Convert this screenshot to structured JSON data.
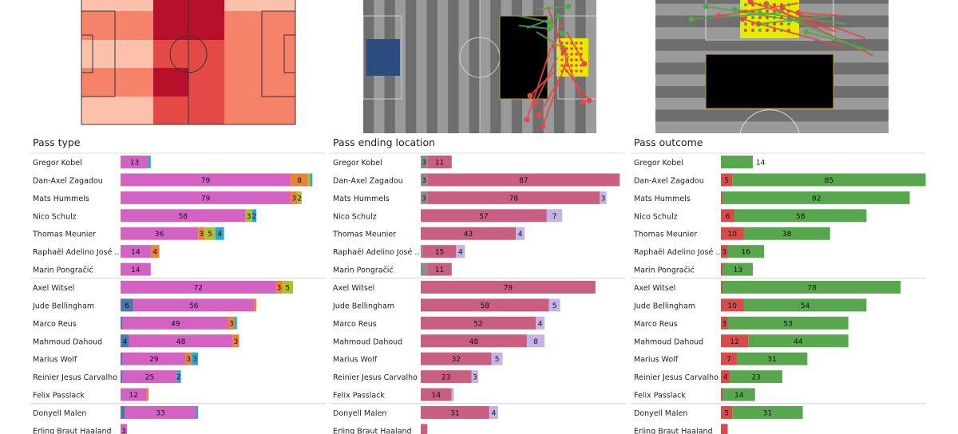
{
  "panels": [
    {
      "title": "Pass type"
    },
    {
      "title": "Pass ending location"
    },
    {
      "title": "Pass outcome"
    }
  ],
  "colors": {
    "type_seg": [
      "#4c78b0",
      "#d462c2",
      "#e8833a",
      "#b5bd35",
      "#2ea6c9"
    ],
    "location_seg": [
      "#8c8c8c",
      "#c85e80",
      "#c5b3e6"
    ],
    "outcome_seg": [
      "#d84b4b",
      "#58a64e"
    ],
    "heat": [
      "#fcc1aa",
      "#f6826a",
      "#e44a45",
      "#b7102a"
    ],
    "pitch_grey": [
      "#6e6e6e",
      "#9a9a9a"
    ],
    "pass_green": "#4ea84a",
    "pass_red": "#e2494b",
    "zone_yellow": "#e5ea00",
    "zone_blue": "#2b4c7e"
  },
  "chart_data": [
    {
      "type": "bar",
      "title": "Pass type",
      "stacked": true,
      "categories": [
        "Gregor Kobel",
        "Dan-Axel Zagadou",
        "Mats  Hummels",
        "Nico Schulz",
        "Thomas Meunier",
        "Raphaël Adelino José ..",
        "Marin Pongračić",
        "Axel  Witsel",
        "Jude Bellingham",
        "Marco Reus",
        "Mahmoud Dahoud",
        "Marius Wolf",
        "Reinier Jesus Carvalho",
        "Felix Passlack",
        "Donyell Malen",
        "Erling Braut Haaland"
      ],
      "group_breaks_after": [
        6,
        13
      ],
      "series": [
        {
          "values": [
            0,
            0,
            0,
            0,
            0,
            0,
            0,
            0,
            6,
            1,
            4,
            1,
            1,
            0,
            2,
            0
          ]
        },
        {
          "values": [
            13,
            79,
            79,
            58,
            36,
            14,
            14,
            72,
            56,
            49,
            48,
            29,
            25,
            12,
            33,
            3
          ]
        },
        {
          "values": [
            0,
            8,
            3,
            0,
            3,
            4,
            0,
            3,
            1,
            3,
            3,
            3,
            0,
            1,
            0,
            0
          ]
        },
        {
          "values": [
            0,
            1,
            2,
            3,
            5,
            0,
            0,
            5,
            0,
            0,
            0,
            0,
            0,
            0,
            0,
            0
          ]
        },
        {
          "values": [
            1,
            1,
            0,
            2,
            4,
            0,
            0,
            0,
            0,
            1,
            0,
            3,
            2,
            0,
            1,
            0
          ]
        }
      ],
      "labels": [
        [
          null,
          null,
          null,
          null,
          null,
          null,
          null,
          null,
          "6",
          null,
          "4",
          null,
          null,
          null,
          null,
          null
        ],
        [
          "13",
          "79",
          "79",
          "58",
          "36",
          "14",
          "14",
          "72",
          "56",
          "49",
          "48",
          "29",
          "25",
          "12",
          "33",
          "3"
        ],
        [
          null,
          "8",
          "3",
          null,
          "3",
          "4",
          null,
          "3",
          null,
          "3",
          "3",
          "3",
          null,
          null,
          null,
          null
        ],
        [
          null,
          null,
          "2",
          "3",
          "5",
          null,
          null,
          "5",
          null,
          null,
          null,
          null,
          null,
          null,
          null,
          null
        ],
        [
          null,
          null,
          null,
          "2",
          "4",
          null,
          null,
          null,
          null,
          null,
          null,
          "3",
          "2",
          null,
          null,
          null
        ]
      ]
    },
    {
      "type": "bar",
      "title": "Pass ending location",
      "stacked": true,
      "categories": [
        "Gregor Kobel",
        "Dan-Axel Zagadou",
        "Mats  Hummels",
        "Nico Schulz",
        "Thomas Meunier",
        "Raphaël Adelino José ..",
        "Marin Pongračić",
        "Axel  Witsel",
        "Jude Bellingham",
        "Marco Reus",
        "Mahmoud Dahoud",
        "Marius Wolf",
        "Reinier Jesus Carvalho",
        "Felix Passlack",
        "Donyell Malen",
        "Erling Braut Haaland"
      ],
      "group_breaks_after": [
        6,
        13
      ],
      "series": [
        {
          "values": [
            3,
            3,
            3,
            0,
            0,
            1,
            3,
            0,
            0,
            0,
            0,
            0,
            0,
            0,
            0,
            0
          ]
        },
        {
          "values": [
            11,
            87,
            78,
            57,
            43,
            15,
            11,
            79,
            58,
            52,
            48,
            32,
            23,
            14,
            31,
            3
          ]
        },
        {
          "values": [
            0,
            0,
            3,
            7,
            4,
            4,
            0,
            0,
            5,
            4,
            8,
            5,
            3,
            1,
            4,
            0
          ]
        }
      ],
      "labels": [
        [
          "3",
          "3",
          "3",
          null,
          null,
          null,
          null,
          null,
          null,
          null,
          null,
          null,
          null,
          null,
          null,
          null
        ],
        [
          "11",
          "87",
          "78",
          "57",
          "43",
          "15",
          "11",
          "79",
          "58",
          "52",
          "48",
          "32",
          "23",
          "14",
          "31",
          null
        ],
        [
          null,
          null,
          "3",
          "7",
          "4",
          "4",
          null,
          null,
          "5",
          "4",
          "8",
          "5",
          "3",
          null,
          "4",
          null
        ]
      ]
    },
    {
      "type": "bar",
      "title": "Pass outcome",
      "stacked": true,
      "categories": [
        "Gregor Kobel",
        "Dan-Axel Zagadou",
        "Mats  Hummels",
        "Nico Schulz",
        "Thomas Meunier",
        "Raphaël Adelino José ..",
        "Marin Pongračić",
        "Axel  Witsel",
        "Jude Bellingham",
        "Marco Reus",
        "Mahmoud Dahoud",
        "Marius Wolf",
        "Reinier Jesus Carvalho",
        "Felix Passlack",
        "Donyell Malen",
        "Erling Braut Haaland"
      ],
      "group_breaks_after": [
        6,
        13
      ],
      "series": [
        {
          "values": [
            0,
            5,
            1,
            6,
            10,
            3,
            1,
            1,
            10,
            3,
            12,
            7,
            4,
            1,
            5,
            3
          ]
        },
        {
          "values": [
            14,
            85,
            82,
            58,
            38,
            16,
            13,
            78,
            54,
            53,
            44,
            31,
            23,
            14,
            31,
            0
          ]
        }
      ],
      "labels": [
        [
          null,
          "5",
          null,
          "6",
          "10",
          "3",
          null,
          null,
          "10",
          "3",
          "12",
          "7",
          "4",
          null,
          "5",
          null
        ],
        [
          "14",
          "85",
          "82",
          "58",
          "38",
          "16",
          "13",
          "78",
          "54",
          "53",
          "44",
          "31",
          "23",
          "14",
          "31",
          null
        ]
      ],
      "outside_label_series": 1
    }
  ]
}
